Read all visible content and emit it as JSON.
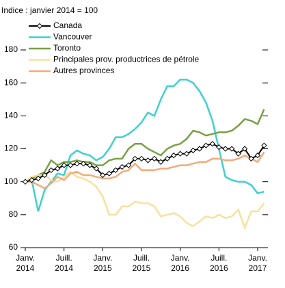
{
  "chart_data": {
    "type": "line",
    "subtitle": "Indice : janvier 2014 = 100",
    "categories": [
      "Janv.\n2014",
      null,
      null,
      null,
      null,
      null,
      "Juill.\n2014",
      null,
      null,
      null,
      null,
      null,
      "Janv.\n2015",
      null,
      null,
      null,
      null,
      null,
      "Juill.\n2015",
      null,
      null,
      null,
      null,
      null,
      "Janv.\n2016",
      null,
      null,
      null,
      null,
      null,
      "Juill.\n2016",
      null,
      null,
      null,
      null,
      null,
      "Janv.\n2017",
      null
    ],
    "ylim": [
      60,
      180
    ],
    "yticks": [
      60,
      80,
      100,
      120,
      140,
      160,
      180
    ],
    "series": [
      {
        "name": "Canada",
        "color": "#000000",
        "values": [
          100,
          101,
          102,
          104,
          107,
          108,
          110,
          110,
          111,
          111,
          110,
          108,
          104,
          105,
          107,
          109,
          110,
          114,
          114,
          113,
          114,
          112,
          114,
          116,
          117,
          117,
          119,
          120,
          122,
          123,
          121,
          120,
          120,
          117,
          120,
          114,
          116,
          122
        ]
      },
      {
        "name": "Vancouver",
        "color": "#3fcfcf",
        "values": [
          100,
          101,
          82,
          95,
          100,
          105,
          104,
          116,
          119,
          117,
          116,
          113,
          115,
          120,
          127,
          127,
          129,
          132,
          136,
          142,
          140,
          150,
          158,
          158,
          162,
          162,
          160,
          155,
          148,
          137,
          120,
          103,
          101,
          100,
          100,
          98,
          93,
          94
        ]
      },
      {
        "name": "Toronto",
        "color": "#77a043",
        "values": [
          100,
          102,
          104,
          106,
          113,
          110,
          112,
          112,
          113,
          112,
          112,
          110,
          110,
          113,
          114,
          114,
          120,
          123,
          123,
          120,
          118,
          116,
          120,
          122,
          123,
          126,
          131,
          130,
          128,
          129,
          130,
          130,
          131,
          134,
          138,
          137,
          135,
          144
        ]
      },
      {
        "name": "Principales prov. productrices de pétrole",
        "color": "#f7e19c",
        "values": [
          100,
          103,
          104,
          104,
          101,
          100,
          103,
          106,
          103,
          102,
          100,
          97,
          91,
          80,
          80,
          85,
          85,
          88,
          87,
          87,
          85,
          79,
          80,
          81,
          79,
          75,
          73,
          76,
          79,
          78,
          80,
          78,
          79,
          83,
          72,
          82,
          82,
          87
        ]
      },
      {
        "name": "Autres provinces",
        "color": "#f5a97a",
        "values": [
          100,
          100,
          98,
          96,
          99,
          103,
          101,
          105,
          106,
          104,
          104,
          103,
          102,
          102,
          103,
          106,
          107,
          111,
          107,
          107,
          107,
          108,
          108,
          109,
          110,
          110,
          111,
          112,
          112,
          114,
          114,
          113,
          113,
          114,
          116,
          114,
          112,
          118
        ]
      }
    ]
  }
}
